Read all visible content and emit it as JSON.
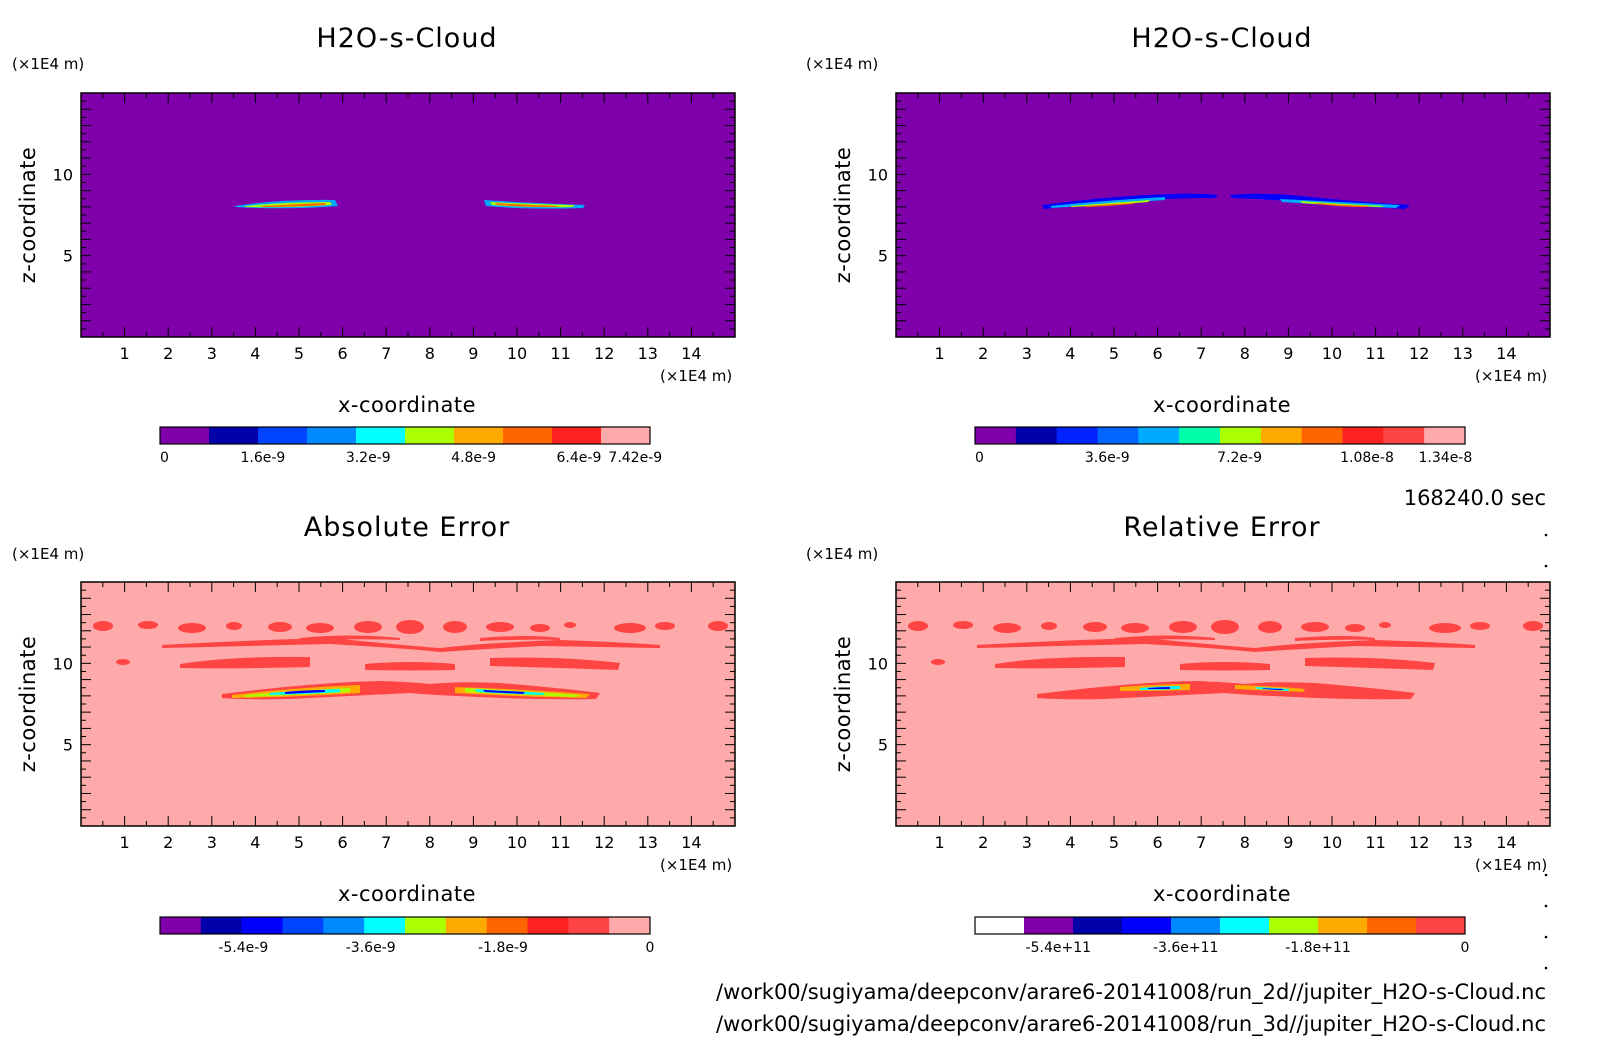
{
  "colors": {
    "background_purple": "#7f00aa",
    "background_pink": "#ffaaaa",
    "red": "#ff4444",
    "orange": "#ffaa00",
    "yellow": "#ffff00",
    "green": "#aaff00",
    "cyan": "#00ffff",
    "blue": "#0000ff",
    "darkblue": "#0000aa"
  },
  "time_label": "168240.0 sec",
  "file_paths": [
    "/work00/sugiyama/deepconv/arare6-20141008/run_2d//jupiter_H2O-s-Cloud.nc",
    "/work00/sugiyama/deepconv/arare6-20141008/run_3d//jupiter_H2O-s-Cloud.nc"
  ],
  "chart_data": [
    {
      "type": "heatmap",
      "title": "H2O-s-Cloud",
      "xlabel": "x-coordinate",
      "ylabel": "z-coordinate",
      "x_units": "(×1E4 m)",
      "y_units": "(×1E4 m)",
      "xlim": [
        0,
        15
      ],
      "ylim": [
        0,
        15
      ],
      "x_ticks": [
        "1",
        "2",
        "3",
        "4",
        "5",
        "6",
        "7",
        "8",
        "9",
        "10",
        "11",
        "12",
        "13",
        "14"
      ],
      "y_ticks": [
        "5",
        "10"
      ],
      "colorbar": {
        "colors": [
          "#7f00aa",
          "#0000aa",
          "#0044ff",
          "#0088ff",
          "#00ffff",
          "#aaff00",
          "#ffaa00",
          "#ff6600",
          "#ff2222",
          "#ffaaaa"
        ],
        "tick_labels": [
          "0",
          "1.6e-9",
          "3.2e-9",
          "4.8e-9",
          "6.4e-9",
          "7.42e-9"
        ]
      },
      "features": [
        {
          "x_range": [
            3.6,
            5.8
          ],
          "z": 8.0,
          "peak": "red"
        },
        {
          "x_range": [
            9.3,
            11.6
          ],
          "z": 8.0,
          "peak": "red"
        }
      ]
    },
    {
      "type": "heatmap",
      "title": "H2O-s-Cloud",
      "xlabel": "x-coordinate",
      "ylabel": "z-coordinate",
      "x_units": "(×1E4 m)",
      "y_units": "(×1E4 m)",
      "xlim": [
        0,
        15
      ],
      "ylim": [
        0,
        15
      ],
      "x_ticks": [
        "1",
        "2",
        "3",
        "4",
        "5",
        "6",
        "7",
        "8",
        "9",
        "10",
        "11",
        "12",
        "13",
        "14"
      ],
      "y_ticks": [
        "5",
        "10"
      ],
      "colorbar": {
        "colors": [
          "#7f00aa",
          "#0000aa",
          "#0022ff",
          "#0066ff",
          "#00aaff",
          "#00ffaa",
          "#aaff00",
          "#ffaa00",
          "#ff6600",
          "#ff2222",
          "#ff4444",
          "#ffaaaa"
        ],
        "tick_labels": [
          "0",
          "3.6e-9",
          "7.2e-9",
          "1.08e-8",
          "1.34e-8"
        ]
      },
      "features": [
        {
          "x_range": [
            3.4,
            7.3
          ],
          "z": 8.0,
          "peak": "orange"
        },
        {
          "x_range": [
            7.8,
            11.8
          ],
          "z": 8.0,
          "peak": "orange"
        }
      ]
    },
    {
      "type": "heatmap",
      "title": "Absolute Error",
      "xlabel": "x-coordinate",
      "ylabel": "z-coordinate",
      "x_units": "(×1E4 m)",
      "y_units": "(×1E4 m)",
      "xlim": [
        0,
        15
      ],
      "ylim": [
        0,
        15
      ],
      "x_ticks": [
        "1",
        "2",
        "3",
        "4",
        "5",
        "6",
        "7",
        "8",
        "9",
        "10",
        "11",
        "12",
        "13",
        "14"
      ],
      "y_ticks": [
        "5",
        "10"
      ],
      "colorbar": {
        "colors": [
          "#7f00aa",
          "#0000aa",
          "#0000ff",
          "#0044ff",
          "#0088ff",
          "#00ffff",
          "#aaff00",
          "#ffaa00",
          "#ff6600",
          "#ff2222",
          "#ff4444",
          "#ffaaaa"
        ],
        "tick_labels": [
          "-5.4e-9",
          "-3.6e-9",
          "-1.8e-9",
          "0"
        ]
      }
    },
    {
      "type": "heatmap",
      "title": "Relative Error",
      "xlabel": "x-coordinate",
      "ylabel": "z-coordinate",
      "x_units": "(×1E4 m)",
      "y_units": "(×1E4 m)",
      "xlim": [
        0,
        15
      ],
      "ylim": [
        0,
        15
      ],
      "x_ticks": [
        "1",
        "2",
        "3",
        "4",
        "5",
        "6",
        "7",
        "8",
        "9",
        "10",
        "11",
        "12",
        "13",
        "14"
      ],
      "y_ticks": [
        "5",
        "10"
      ],
      "colorbar": {
        "colors": [
          "#ffffff",
          "#7f00aa",
          "#0000aa",
          "#0000ff",
          "#0088ff",
          "#00ffff",
          "#aaff00",
          "#ffaa00",
          "#ff6600",
          "#ff4444"
        ],
        "tick_labels": [
          "-5.4e+11",
          "-3.6e+11",
          "-1.8e+11",
          "0"
        ]
      }
    }
  ]
}
